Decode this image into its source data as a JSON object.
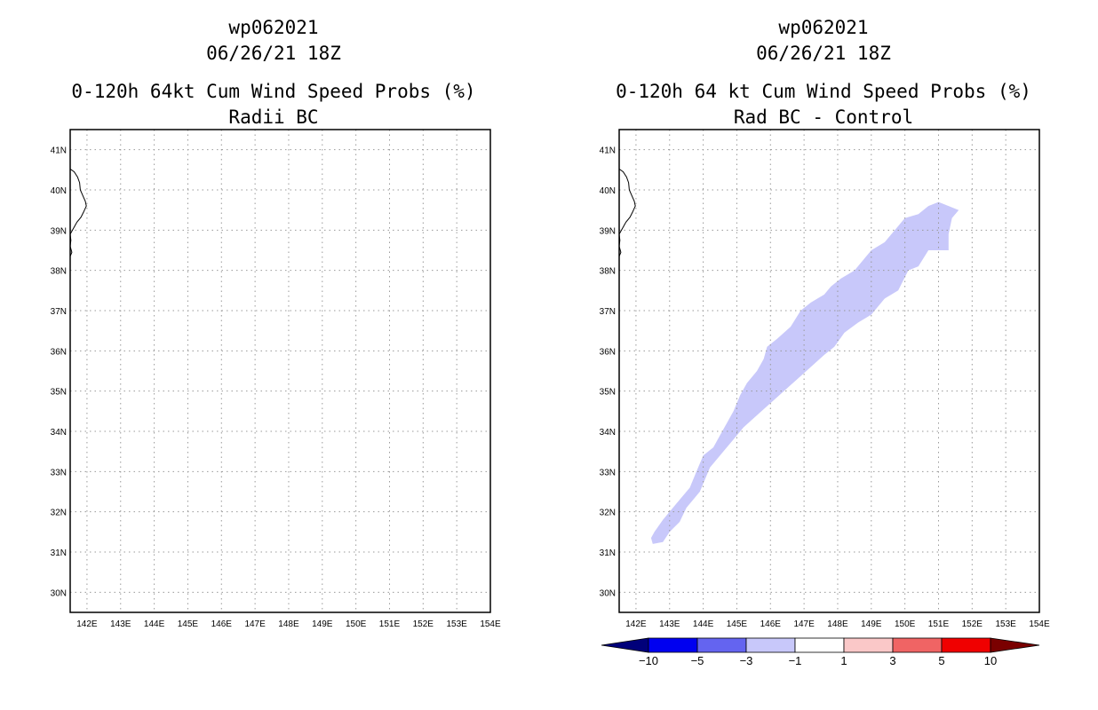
{
  "chart_data": [
    {
      "type": "map",
      "title_lines": [
        "wp062021",
        "06/26/21 18Z",
        "0-120h 64kt Cum Wind Speed Probs (%)",
        "Radii BC"
      ],
      "lon_range": [
        141.5,
        154
      ],
      "lat_range": [
        29.5,
        41.5
      ],
      "lon_ticks": [
        142,
        143,
        144,
        145,
        146,
        147,
        148,
        149,
        150,
        151,
        152,
        153,
        154
      ],
      "lon_tick_labels": [
        "142E",
        "143E",
        "144E",
        "145E",
        "146E",
        "147E",
        "148E",
        "149E",
        "150E",
        "151E",
        "152E",
        "153E",
        "154E"
      ],
      "lat_ticks": [
        30,
        31,
        32,
        33,
        34,
        35,
        36,
        37,
        38,
        39,
        40,
        41
      ],
      "lat_tick_labels": [
        "30N",
        "31N",
        "32N",
        "33N",
        "34N",
        "35N",
        "36N",
        "37N",
        "38N",
        "39N",
        "40N",
        "41N"
      ],
      "grid": true,
      "coastline": [
        [
          141.5,
          40.52
        ],
        [
          141.62,
          40.45
        ],
        [
          141.72,
          40.32
        ],
        [
          141.78,
          40.18
        ],
        [
          141.8,
          40.0
        ],
        [
          141.88,
          39.85
        ],
        [
          141.95,
          39.72
        ],
        [
          141.98,
          39.6
        ],
        [
          141.9,
          39.45
        ],
        [
          141.82,
          39.32
        ],
        [
          141.7,
          39.2
        ],
        [
          141.6,
          39.05
        ],
        [
          141.5,
          38.9
        ],
        [
          141.52,
          38.75
        ],
        [
          141.5,
          38.6
        ],
        [
          141.55,
          38.45
        ],
        [
          141.5,
          38.35
        ]
      ],
      "filled_regions": []
    },
    {
      "type": "map",
      "title_lines": [
        "wp062021",
        "06/26/21 18Z",
        "0-120h 64 kt Cum Wind Speed Probs (%)",
        "Rad BC - Control"
      ],
      "lon_range": [
        141.5,
        154
      ],
      "lat_range": [
        29.5,
        41.5
      ],
      "lon_ticks": [
        142,
        143,
        144,
        145,
        146,
        147,
        148,
        149,
        150,
        151,
        152,
        153,
        154
      ],
      "lon_tick_labels": [
        "142E",
        "143E",
        "144E",
        "145E",
        "146E",
        "147E",
        "148E",
        "149E",
        "150E",
        "151E",
        "152E",
        "153E",
        "154E"
      ],
      "lat_ticks": [
        30,
        31,
        32,
        33,
        34,
        35,
        36,
        37,
        38,
        39,
        40,
        41
      ],
      "lat_tick_labels": [
        "30N",
        "31N",
        "32N",
        "33N",
        "34N",
        "35N",
        "36N",
        "37N",
        "38N",
        "39N",
        "40N",
        "41N"
      ],
      "grid": true,
      "coastline": [
        [
          141.5,
          40.52
        ],
        [
          141.62,
          40.45
        ],
        [
          141.72,
          40.32
        ],
        [
          141.78,
          40.18
        ],
        [
          141.8,
          40.0
        ],
        [
          141.88,
          39.85
        ],
        [
          141.95,
          39.72
        ],
        [
          141.98,
          39.6
        ],
        [
          141.9,
          39.45
        ],
        [
          141.82,
          39.32
        ],
        [
          141.7,
          39.2
        ],
        [
          141.6,
          39.05
        ],
        [
          141.5,
          38.9
        ],
        [
          141.52,
          38.75
        ],
        [
          141.5,
          38.6
        ],
        [
          141.55,
          38.45
        ],
        [
          141.5,
          38.35
        ]
      ],
      "filled_regions": [
        {
          "value_range": [
            -3,
            -1
          ],
          "color": "#c8c8fa",
          "polygon": [
            [
              142.5,
              31.2
            ],
            [
              142.8,
              31.25
            ],
            [
              143.0,
              31.5
            ],
            [
              143.3,
              31.75
            ],
            [
              143.5,
              32.1
            ],
            [
              143.9,
              32.5
            ],
            [
              144.2,
              33.1
            ],
            [
              144.5,
              33.4
            ],
            [
              144.9,
              33.8
            ],
            [
              145.2,
              34.1
            ],
            [
              145.6,
              34.4
            ],
            [
              146.0,
              34.7
            ],
            [
              146.4,
              35.0
            ],
            [
              146.8,
              35.3
            ],
            [
              147.2,
              35.6
            ],
            [
              147.6,
              35.9
            ],
            [
              147.9,
              36.1
            ],
            [
              148.2,
              36.45
            ],
            [
              148.6,
              36.7
            ],
            [
              149.0,
              36.9
            ],
            [
              149.4,
              37.3
            ],
            [
              149.8,
              37.5
            ],
            [
              150.1,
              38.0
            ],
            [
              150.4,
              38.1
            ],
            [
              150.7,
              38.5
            ],
            [
              151.0,
              38.5
            ],
            [
              151.3,
              38.5
            ],
            [
              151.3,
              38.9
            ],
            [
              151.4,
              39.3
            ],
            [
              151.6,
              39.5
            ],
            [
              151.3,
              39.6
            ],
            [
              151.0,
              39.7
            ],
            [
              150.7,
              39.6
            ],
            [
              150.4,
              39.4
            ],
            [
              150.0,
              39.3
            ],
            [
              149.7,
              39.0
            ],
            [
              149.4,
              38.7
            ],
            [
              149.0,
              38.5
            ],
            [
              148.8,
              38.3
            ],
            [
              148.5,
              38.0
            ],
            [
              148.1,
              37.8
            ],
            [
              147.8,
              37.6
            ],
            [
              147.6,
              37.4
            ],
            [
              147.2,
              37.2
            ],
            [
              146.9,
              37.0
            ],
            [
              146.6,
              36.6
            ],
            [
              146.2,
              36.3
            ],
            [
              145.9,
              36.1
            ],
            [
              145.8,
              35.8
            ],
            [
              145.6,
              35.5
            ],
            [
              145.3,
              35.2
            ],
            [
              145.1,
              34.9
            ],
            [
              144.9,
              34.5
            ],
            [
              144.7,
              34.2
            ],
            [
              144.5,
              33.9
            ],
            [
              144.3,
              33.6
            ],
            [
              144.0,
              33.4
            ],
            [
              143.8,
              33.0
            ],
            [
              143.6,
              32.6
            ],
            [
              143.4,
              32.4
            ],
            [
              143.1,
              32.1
            ],
            [
              142.8,
              31.8
            ],
            [
              142.55,
              31.5
            ],
            [
              142.45,
              31.35
            ]
          ]
        }
      ],
      "colorbar": {
        "colors": [
          "#00007a",
          "#0000f0",
          "#6464f0",
          "#c8c8fa",
          "#ffffff",
          "#fac8c8",
          "#f06464",
          "#f00000",
          "#7a0000"
        ],
        "labels": [
          "-10",
          "-5",
          "-3",
          "-1",
          "1",
          "3",
          "5",
          "10"
        ]
      }
    }
  ]
}
